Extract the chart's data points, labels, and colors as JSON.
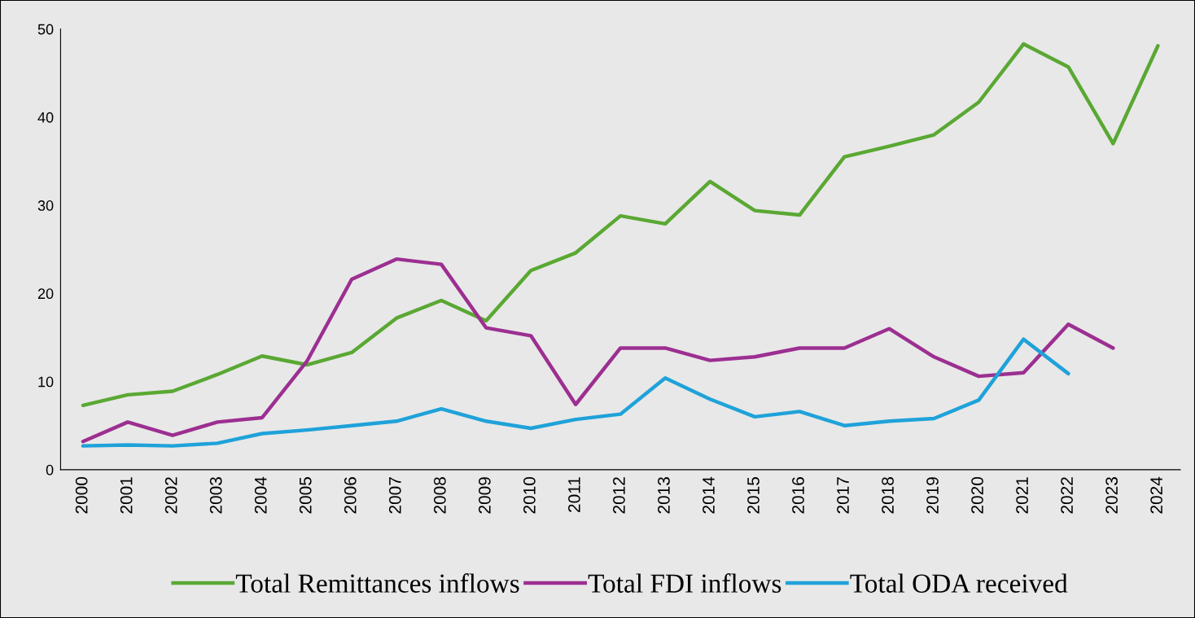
{
  "chart_data": {
    "type": "line",
    "categories": [
      "2000",
      "2001",
      "2002",
      "2003",
      "2004",
      "2005",
      "2006",
      "2007",
      "2008",
      "2009",
      "2010",
      "2011",
      "2012",
      "2013",
      "2014",
      "2015",
      "2016",
      "2017",
      "2018",
      "2019",
      "2020",
      "2021",
      "2022",
      "2023",
      "2024"
    ],
    "series": [
      {
        "name": "Total Remittances inflows",
        "color": "#5aa833",
        "values": [
          7.3,
          8.5,
          8.9,
          10.8,
          12.9,
          11.9,
          13.3,
          17.2,
          19.2,
          16.9,
          22.6,
          24.6,
          28.8,
          27.9,
          32.7,
          29.4,
          28.9,
          35.5,
          36.7,
          38.0,
          41.7,
          48.3,
          45.7,
          37.0,
          48.1
        ]
      },
      {
        "name": "Total FDI inflows",
        "color": "#9c2f91",
        "values": [
          3.2,
          5.4,
          3.9,
          5.4,
          5.9,
          12.3,
          21.6,
          23.9,
          23.3,
          16.1,
          15.2,
          7.4,
          13.8,
          13.8,
          12.4,
          12.8,
          13.8,
          13.8,
          16.0,
          12.8,
          10.6,
          11.0,
          16.5,
          13.8,
          null
        ]
      },
      {
        "name": "Total ODA received",
        "color": "#1fa2d9",
        "values": [
          2.7,
          2.8,
          2.7,
          3.0,
          4.1,
          4.5,
          5.0,
          5.5,
          6.9,
          5.5,
          4.7,
          5.7,
          6.3,
          10.4,
          8.0,
          6.0,
          6.6,
          5.0,
          5.5,
          5.8,
          7.9,
          14.8,
          10.9,
          null,
          null
        ]
      }
    ],
    "ylim": [
      0,
      50
    ],
    "yticks": [
      0,
      10,
      20,
      30,
      40,
      50
    ],
    "grid": false,
    "legend": "bottom",
    "marker": "none",
    "line_style": "solid"
  }
}
